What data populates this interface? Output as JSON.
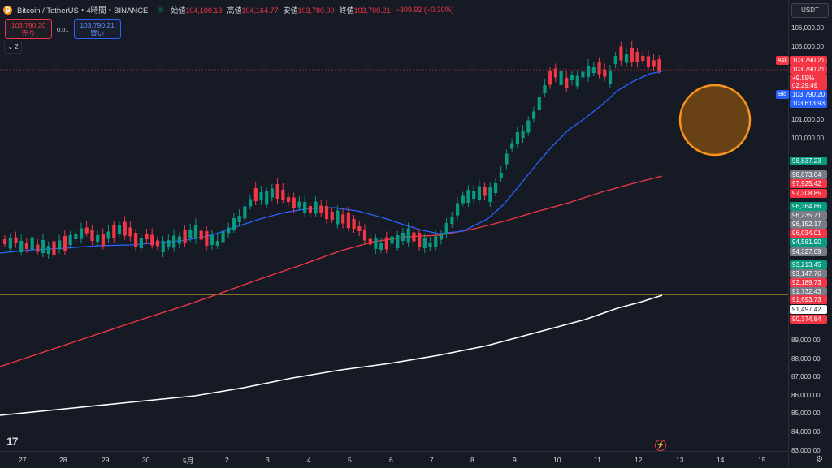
{
  "header": {
    "title": "Bitcoin / TetherUS・4時間・BINANCE",
    "open_label": "始値",
    "open": "104,100.13",
    "high_label": "高値",
    "high": "104,164.77",
    "low_label": "安値",
    "low": "103,780.00",
    "close_label": "終値",
    "close": "103,790.21",
    "change": "−309.92 (−0.30%)"
  },
  "trade": {
    "sell_price": "103,790.20",
    "sell_label": "売り",
    "spread": "0.01",
    "buy_price": "103,790.21",
    "buy_label": "買い"
  },
  "collapse_label": "2",
  "currency": "USDT",
  "price_ticks": [
    "106,000.00",
    "105,000.00",
    "101,000.00",
    "100,000.00",
    "89,000.00",
    "88,000.00",
    "87,000.00",
    "86,000.00",
    "85,000.00",
    "84,000.00",
    "83,000.00"
  ],
  "price_labels": [
    {
      "text": "103,790.21",
      "bg": "#f23645",
      "fg": "#ffffff"
    },
    {
      "text": "103,790.21",
      "bg": "#f23645",
      "fg": "#ffffff"
    },
    {
      "text": "+9.55%",
      "bg": "#f23645",
      "fg": "#ffffff"
    },
    {
      "text": "02:29:49",
      "bg": "#f23645",
      "fg": "#ffffff"
    },
    {
      "text": "103,790.20",
      "bg": "#2962ff",
      "fg": "#ffffff"
    },
    {
      "text": "103,613.93",
      "bg": "#2962ff",
      "fg": "#ffffff"
    },
    {
      "text": "98,837.23",
      "bg": "#089981",
      "fg": "#ffffff"
    },
    {
      "text": "98,073.04",
      "bg": "#787b86",
      "fg": "#ffffff"
    },
    {
      "text": "97,925.42",
      "bg": "#f23645",
      "fg": "#ffffff"
    },
    {
      "text": "97,308.85",
      "bg": "#f23645",
      "fg": "#ffffff"
    },
    {
      "text": "96,364.86",
      "bg": "#089981",
      "fg": "#ffffff"
    },
    {
      "text": "96,235.71",
      "bg": "#787b86",
      "fg": "#ffffff"
    },
    {
      "text": "96,152.17",
      "bg": "#787b86",
      "fg": "#ffffff"
    },
    {
      "text": "96,034.01",
      "bg": "#f23645",
      "fg": "#ffffff"
    },
    {
      "text": "94,581.90",
      "bg": "#089981",
      "fg": "#ffffff"
    },
    {
      "text": "94,327.09",
      "bg": "#787b86",
      "fg": "#ffffff"
    },
    {
      "text": "93,213.45",
      "bg": "#089981",
      "fg": "#ffffff"
    },
    {
      "text": "93,147.76",
      "bg": "#787b86",
      "fg": "#ffffff"
    },
    {
      "text": "92,189.73",
      "bg": "#f23645",
      "fg": "#ffffff"
    },
    {
      "text": "91,732.43",
      "bg": "#787b86",
      "fg": "#ffffff"
    },
    {
      "text": "91,693.73",
      "bg": "#f23645",
      "fg": "#ffffff"
    },
    {
      "text": "91,497.42",
      "bg": "#ffffff",
      "fg": "#131722"
    },
    {
      "text": "90,374.84",
      "bg": "#f23645",
      "fg": "#ffffff"
    }
  ],
  "ask_tag": "Ask",
  "bid_tag": "Bid",
  "x_labels": [
    "27",
    "28",
    "29",
    "30",
    "5月",
    "2",
    "3",
    "4",
    "5",
    "6",
    "7",
    "8",
    "9",
    "10",
    "11",
    "12",
    "13",
    "14",
    "15"
  ],
  "chart_data": {
    "type": "candlestick",
    "interval": "4時間",
    "y_unit": "USDT",
    "overlays": [
      {
        "color": "#2962ff",
        "kind": "moving-average-short"
      },
      {
        "color": "#f23645",
        "kind": "moving-average-mid"
      },
      {
        "color": "#ffffff",
        "kind": "moving-average-long"
      }
    ],
    "horizontal_line": {
      "color": "#f5c518",
      "price": 91650
    },
    "colors": {
      "up": "#089981",
      "down": "#f23645",
      "background": "#161a25",
      "highlight_circle": "#f7931a"
    }
  }
}
